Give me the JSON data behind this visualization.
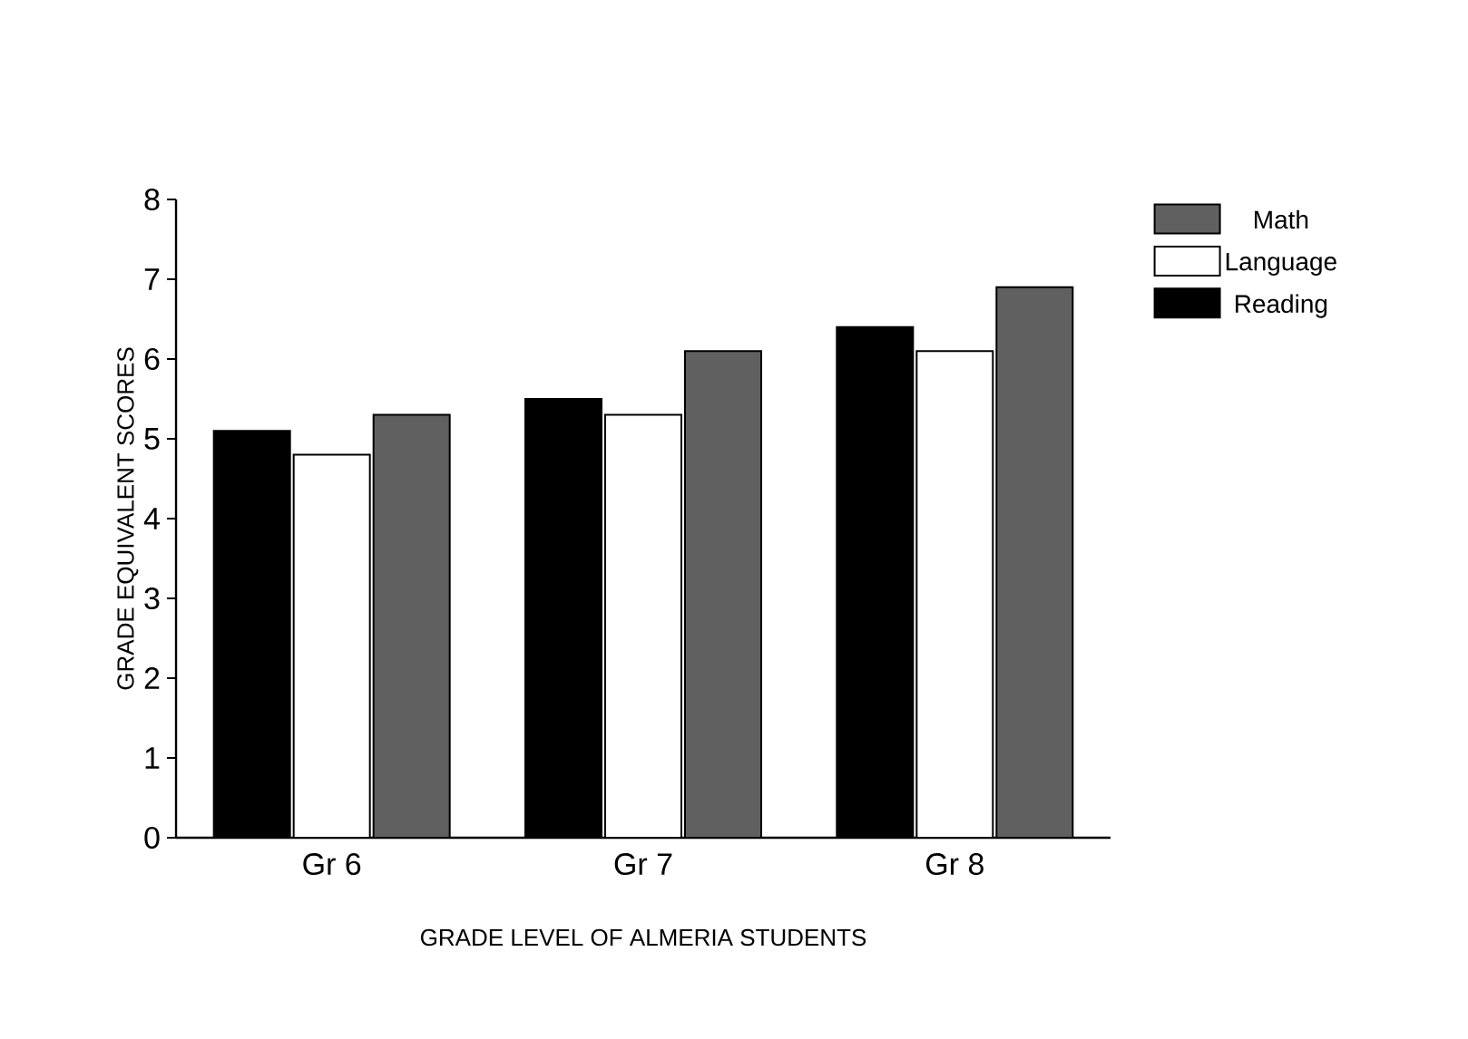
{
  "chart_data": {
    "type": "bar",
    "xlabel": "GRADE LEVEL OF ALMERIA STUDENTS",
    "ylabel": "GRADE EQUIVALENT SCORES",
    "categories": [
      "Gr 6",
      "Gr 7",
      "Gr 8"
    ],
    "series": [
      {
        "name": "Reading",
        "color": "#000000",
        "values": [
          5.1,
          5.5,
          6.4
        ]
      },
      {
        "name": "Language",
        "color": "#ffffff",
        "values": [
          4.8,
          5.3,
          6.1
        ]
      },
      {
        "name": "Math",
        "color": "#606060",
        "values": [
          5.3,
          6.1,
          6.9
        ]
      }
    ],
    "ylim": [
      0,
      8
    ],
    "yticks": [
      0,
      1,
      2,
      3,
      4,
      5,
      6,
      7,
      8
    ],
    "grid": false,
    "legend": "top right"
  }
}
